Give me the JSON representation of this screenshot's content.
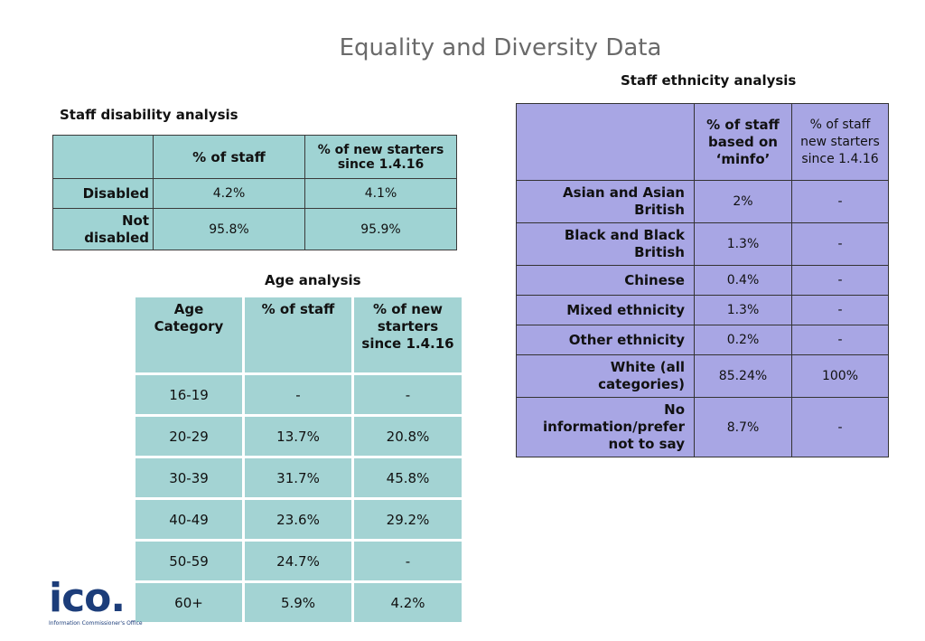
{
  "page": {
    "title": "Equality and Diversity Data"
  },
  "disability": {
    "caption": "Staff disability analysis",
    "col1": "% of staff",
    "col2": "% of new starters since 1.4.16",
    "rows": [
      {
        "label": "Disabled",
        "staff": "4.2%",
        "starters": "4.1%"
      },
      {
        "label": "Not disabled",
        "staff": "95.8%",
        "starters": "95.9%"
      }
    ]
  },
  "age": {
    "caption": "Age analysis",
    "col0": "Age Category",
    "col1": "% of staff",
    "col2": "% of new starters since 1.4.16",
    "rows": [
      {
        "category": "16-19",
        "staff": "-",
        "starters": "-"
      },
      {
        "category": "20-29",
        "staff": "13.7%",
        "starters": "20.8%"
      },
      {
        "category": "30-39",
        "staff": "31.7%",
        "starters": "45.8%"
      },
      {
        "category": "40-49",
        "staff": "23.6%",
        "starters": "29.2%"
      },
      {
        "category": "50-59",
        "staff": "24.7%",
        "starters": "-"
      },
      {
        "category": "60+",
        "staff": "5.9%",
        "starters": "4.2%"
      }
    ]
  },
  "ethnicity": {
    "caption": "Staff ethnicity analysis",
    "col1": "% of staff based on ‘minfo’",
    "col2": "% of staff new starters since 1.4.16",
    "rows": [
      {
        "label": "Asian and Asian British",
        "staff": "2%",
        "starters": "-"
      },
      {
        "label": "Black and Black British",
        "staff": "1.3%",
        "starters": "-"
      },
      {
        "label": "Chinese",
        "staff": "0.4%",
        "starters": "-"
      },
      {
        "label": "Mixed ethnicity",
        "staff": "1.3%",
        "starters": "-"
      },
      {
        "label": "Other ethnicity",
        "staff": "0.2%",
        "starters": "-"
      },
      {
        "label": "White (all categories)",
        "staff": "85.24%",
        "starters": "100%"
      },
      {
        "label": "No information/prefer not to say",
        "staff": "8.7%",
        "starters": "-"
      }
    ]
  },
  "logo": {
    "mark": "ico.",
    "subtitle": "Information Commissioner's Office"
  },
  "colors": {
    "teal": "#9fd3d3",
    "lavender": "#a8a6e4",
    "title_gray": "#6a6a6a",
    "logo_blue": "#1c3d7a"
  }
}
